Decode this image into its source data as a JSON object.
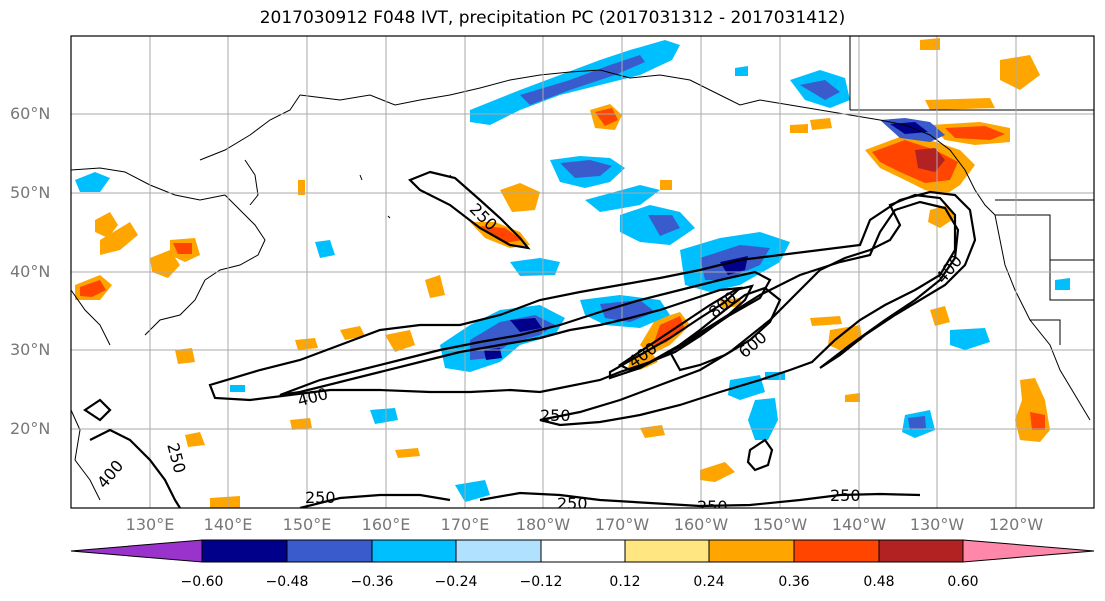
{
  "title": "2017030912 F048 IVT, precipitation PC (2017031312 - 2017031412)",
  "lat_labels": [
    "60°N",
    "50°N",
    "40°N",
    "30°N",
    "20°N"
  ],
  "lon_labels": [
    "130°E",
    "140°E",
    "150°E",
    "160°E",
    "170°E",
    "180°W",
    "170°W",
    "160°W",
    "150°W",
    "140°W",
    "130°W",
    "120°W"
  ],
  "colorbar": {
    "ticks": [
      "−0.60",
      "−0.48",
      "−0.36",
      "−0.24",
      "−0.12",
      "0.12",
      "0.24",
      "0.36",
      "0.48",
      "0.60"
    ],
    "colors": [
      "#9933cc",
      "#00008b",
      "#3a5bcc",
      "#00bfff",
      "#b0e2ff",
      "#ffffff",
      "#ffe680",
      "#ffa500",
      "#ff4500",
      "#b22222",
      "#ff88aa"
    ]
  },
  "contour_labels": [
    "250",
    "400",
    "250",
    "400",
    "600",
    "800",
    "400",
    "250",
    "250",
    "250",
    "250",
    "250",
    "400"
  ],
  "colors": {
    "negative_light": "#b0e2ff",
    "negative_mid": "#00bfff",
    "negative_strong": "#3a5bcc",
    "negative_max": "#00008b",
    "positive_light": "#ffe680",
    "positive_mid": "#ffa500",
    "positive_strong": "#ff4500",
    "positive_max": "#b22222"
  }
}
